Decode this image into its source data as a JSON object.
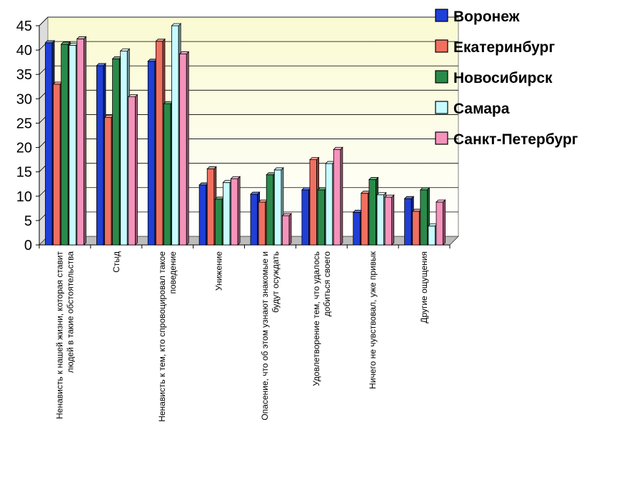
{
  "chart_data": {
    "type": "bar",
    "title": "",
    "xlabel": "",
    "ylabel": "",
    "ylim": [
      0,
      45
    ],
    "yticks": [
      0,
      5,
      10,
      15,
      20,
      25,
      30,
      35,
      40,
      45
    ],
    "grid": true,
    "legend_position": "top-right",
    "categories": [
      [
        "Ненависть к нашей жизни, которая ставит",
        "людей в такие обстоятельства"
      ],
      [
        "Стыд"
      ],
      [
        "Ненависть к тем, кто спровоцировал такое",
        "поведение"
      ],
      [
        "Унижение"
      ],
      [
        "Опасение, что об этом узнают знакомые и",
        "будут осуждать"
      ],
      [
        "Удовлетворение тем, что удалось",
        "добиться своего"
      ],
      [
        "Ничего не чувствовал, уже привык"
      ],
      [
        "Другие ощущения"
      ]
    ],
    "series": [
      {
        "name": "Воронеж",
        "color": "#1f3fd6",
        "values": [
          41.5,
          36.8,
          37.7,
          12.3,
          10.4,
          11.3,
          6.7,
          9.5
        ]
      },
      {
        "name": "Екатеринбург",
        "color": "#f07060",
        "values": [
          33.0,
          26.2,
          41.8,
          15.6,
          8.8,
          17.5,
          10.6,
          6.9
        ]
      },
      {
        "name": "Новосибирск",
        "color": "#2a8a4a",
        "values": [
          41.2,
          38.2,
          29.0,
          9.4,
          14.4,
          11.3,
          13.4,
          11.3
        ]
      },
      {
        "name": "Самара",
        "color": "#c8fbff",
        "values": [
          41.0,
          39.8,
          45.0,
          12.8,
          15.4,
          16.7,
          10.3,
          3.9
        ]
      },
      {
        "name": "Санкт-Петербург",
        "color": "#f593bb",
        "values": [
          42.3,
          30.4,
          39.2,
          13.6,
          6.0,
          19.6,
          9.8,
          8.8
        ]
      }
    ]
  }
}
